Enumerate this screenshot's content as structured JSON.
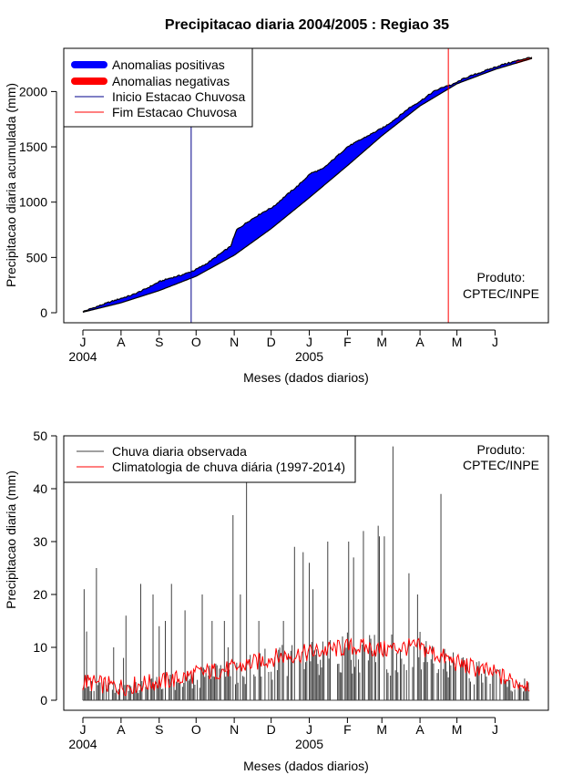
{
  "chart_data": [
    {
      "type": "area",
      "title": "Precipitacao diaria 2004/2005 : Regiao 35",
      "xlabel": "Meses (dados diarios)",
      "ylabel": "Precipitacao diaria acumulada (mm)",
      "ylim": [
        0,
        2300
      ],
      "xlim_days": [
        0,
        365
      ],
      "yticks": [
        0,
        500,
        1000,
        1500,
        2000
      ],
      "month_ticks": [
        "J",
        "A",
        "S",
        "O",
        "N",
        "D",
        "J",
        "F",
        "M",
        "A",
        "M",
        "J"
      ],
      "year_labels": [
        {
          "label": "2004",
          "month_index": 0
        },
        {
          "label": "2005",
          "month_index": 6
        }
      ],
      "legend": [
        {
          "label": "Anomalias positivas",
          "color": "#0000ff",
          "style": "thick"
        },
        {
          "label": "Anomalias negativas",
          "color": "#ff0000",
          "style": "thick"
        },
        {
          "label": "Inicio Estacao Chuvosa",
          "color": "#00008b",
          "style": "line"
        },
        {
          "label": "Fim Estacao Chuvosa",
          "color": "#ff0000",
          "style": "line"
        }
      ],
      "rainy_season_start_day": 88,
      "rainy_season_end_day": 297,
      "observed_cumulative": {
        "day": [
          0,
          10,
          20,
          31,
          40,
          50,
          62,
          70,
          80,
          90,
          100,
          110,
          120,
          125,
          135,
          145,
          155,
          165,
          175,
          185,
          195,
          205,
          215,
          225,
          235,
          245,
          255,
          265,
          275,
          285,
          295,
          300,
          310,
          320,
          330,
          340,
          350,
          360,
          365
        ],
        "value": [
          10,
          50,
          90,
          130,
          160,
          210,
          280,
          310,
          340,
          380,
          440,
          520,
          600,
          750,
          830,
          900,
          960,
          1060,
          1150,
          1260,
          1300,
          1400,
          1500,
          1560,
          1620,
          1680,
          1760,
          1850,
          1920,
          2000,
          2050,
          2060,
          2120,
          2160,
          2200,
          2240,
          2270,
          2300,
          2310
        ]
      },
      "climatology_cumulative": {
        "day": [
          0,
          31,
          62,
          92,
          123,
          153,
          184,
          215,
          243,
          274,
          304,
          335,
          365
        ],
        "value": [
          5,
          90,
          200,
          330,
          520,
          760,
          1040,
          1330,
          1600,
          1870,
          2070,
          2200,
          2300
        ]
      },
      "annotation": [
        "Produto:",
        "CPTEC/INPE"
      ]
    },
    {
      "type": "bar",
      "title": "",
      "xlabel": "Meses (dados diarios)",
      "ylabel": "Precipitacao diaria (mm)",
      "ylim": [
        0,
        50
      ],
      "xlim_days": [
        0,
        365
      ],
      "yticks": [
        0,
        10,
        20,
        30,
        40,
        50
      ],
      "month_ticks": [
        "J",
        "A",
        "S",
        "O",
        "N",
        "D",
        "J",
        "F",
        "M",
        "A",
        "M",
        "J"
      ],
      "year_labels": [
        {
          "label": "2004",
          "month_index": 0
        },
        {
          "label": "2005",
          "month_index": 6
        }
      ],
      "legend": [
        {
          "label": "Chuva diaria observada",
          "color": "#404040",
          "style": "line"
        },
        {
          "label": "Climatologia de chuva diária (1997-2014)",
          "color": "#ff0000",
          "style": "line"
        }
      ],
      "observed_daily_peaks": {
        "day": [
          1,
          3,
          11,
          25,
          33,
          35,
          47,
          57,
          62,
          67,
          72,
          83,
          97,
          105,
          115,
          118,
          122,
          128,
          133,
          143,
          163,
          172,
          179,
          184,
          187,
          199,
          216,
          220,
          228,
          240,
          241,
          245,
          252,
          265,
          272,
          291,
          302
        ],
        "value": [
          21,
          13,
          25,
          10,
          8,
          16,
          22,
          20,
          14,
          15,
          22,
          17,
          20,
          15,
          15,
          10,
          35,
          20,
          43,
          15,
          15,
          29,
          28,
          26,
          21,
          30,
          30,
          27,
          32,
          33,
          31,
          31,
          48,
          24,
          20,
          39,
          7
        ]
      },
      "climatology_daily": {
        "day": [
          0,
          15,
          31,
          46,
          62,
          77,
          92,
          107,
          123,
          138,
          153,
          168,
          184,
          199,
          215,
          229,
          243,
          258,
          274,
          289,
          304,
          319,
          335,
          350,
          365
        ],
        "value": [
          3.5,
          3.0,
          2.5,
          3.0,
          3.5,
          4.0,
          5.0,
          5.5,
          6.0,
          7.0,
          8.0,
          8.5,
          9.0,
          9.5,
          10.0,
          10.0,
          9.5,
          10.0,
          10.0,
          8.5,
          7.0,
          6.0,
          5.0,
          3.5,
          3.0
        ]
      },
      "annotation": [
        "Produto:",
        "CPTEC/INPE"
      ]
    }
  ]
}
